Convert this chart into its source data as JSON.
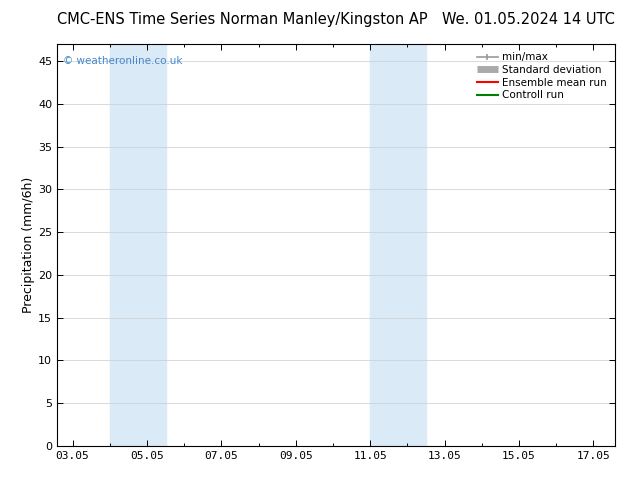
{
  "title_left": "CMC-ENS Time Series Norman Manley/Kingston AP",
  "title_right": "We. 01.05.2024 14 UTC",
  "ylabel": "Precipitation (mm/6h)",
  "ylim": [
    0,
    47
  ],
  "yticks": [
    0,
    5,
    10,
    15,
    20,
    25,
    30,
    35,
    40,
    45
  ],
  "xtick_labels": [
    "03.05",
    "05.05",
    "07.05",
    "09.05",
    "11.05",
    "13.05",
    "15.05",
    "17.05"
  ],
  "xtick_positions_days": [
    3,
    5,
    7,
    9,
    11,
    13,
    15,
    17
  ],
  "xlim": [
    2.583,
    17.583
  ],
  "shade_bands": [
    {
      "start_day": 4.0,
      "end_day": 5.5,
      "color": "#daeaf7"
    },
    {
      "start_day": 11.0,
      "end_day": 12.5,
      "color": "#daeaf7"
    }
  ],
  "bg_color": "#ffffff",
  "plot_bg_color": "#ffffff",
  "grid_color": "#cccccc",
  "watermark_text": "© weatheronline.co.uk",
  "watermark_color": "#4488cc",
  "title_fontsize": 10.5,
  "axis_label_fontsize": 9,
  "tick_fontsize": 8,
  "legend_fontsize": 7.5
}
